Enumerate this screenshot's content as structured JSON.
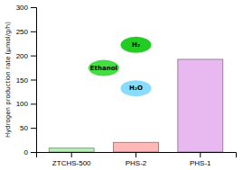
{
  "chart_data": {
    "type": "bar",
    "categories": [
      "ZTCHS-500",
      "PHS-2",
      "PHS-1"
    ],
    "values": [
      8,
      20,
      192
    ],
    "colors": [
      "#b8f0b8",
      "#ffb8b8",
      "#e8b8f0"
    ],
    "ylabel": "Hydrogen production rate (μmol/g/h)",
    "ylim": [
      0,
      300
    ],
    "yticks": [
      0,
      50,
      100,
      150,
      200,
      250,
      300
    ],
    "annotations": [
      "H₂",
      "Ethanol",
      "H₂O"
    ],
    "grid": false
  }
}
